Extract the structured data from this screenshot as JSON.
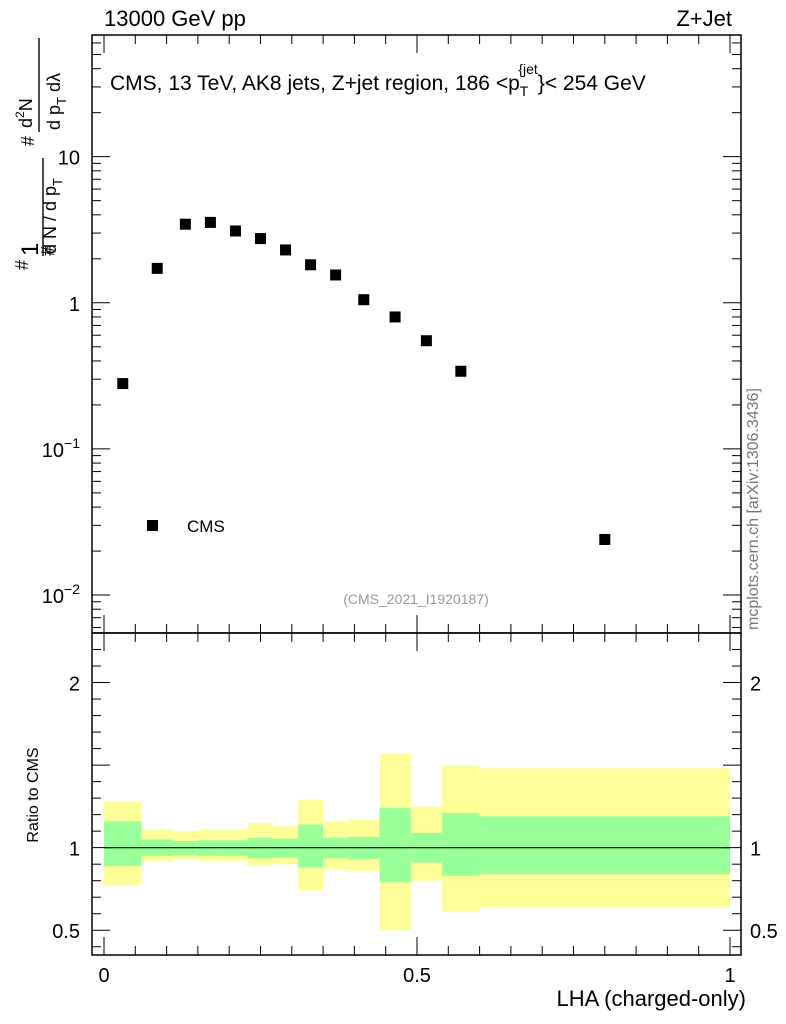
{
  "header": {
    "energy": "13000 GeV pp",
    "process": "Z+Jet",
    "side_note": "mcplots.cern.ch [arXiv:1306.3436]"
  },
  "chart_data": {
    "type": "scatter",
    "title": "CMS, 13 TeV, AK8 jets, Z+jet region, 186 <p_T^{jet}< 254 GeV",
    "ylabel": "1/(dN/dp_T) d²N/(dp_T dλ)",
    "xlabel": "LHA (charged-only)",
    "analysis_id": "(CMS_2021_I1920187)",
    "yscale": "log",
    "ylim": [
      0.005,
      70
    ],
    "xlim": [
      -0.02,
      1.02
    ],
    "yticks": [
      {
        "value": 10,
        "label": "10"
      },
      {
        "value": 1,
        "label": "1"
      },
      {
        "value": 0.1,
        "label": "10",
        "exp": "−1"
      },
      {
        "value": 0.01,
        "label": "10",
        "exp": "−2"
      }
    ],
    "legend": {
      "entry": "CMS",
      "position": "bottom-left"
    },
    "series": [
      {
        "name": "CMS",
        "x": [
          0.03,
          0.085,
          0.13,
          0.17,
          0.21,
          0.25,
          0.29,
          0.33,
          0.37,
          0.415,
          0.465,
          0.515,
          0.57,
          0.8
        ],
        "values": [
          0.28,
          1.72,
          3.45,
          3.55,
          3.1,
          2.75,
          2.3,
          1.82,
          1.55,
          1.05,
          0.8,
          0.55,
          0.34,
          0.024
        ]
      }
    ],
    "ratio_panel": {
      "ylabel": "Ratio to CMS",
      "ylim": [
        0.35,
        2.3
      ],
      "yticks": [
        {
          "value": 2,
          "label": "2"
        },
        {
          "value": 1,
          "label": "1"
        },
        {
          "value": 0.5,
          "label": "0.5"
        }
      ],
      "xticks": [
        {
          "value": 0,
          "label": "0"
        },
        {
          "value": 0.5,
          "label": "0.5"
        },
        {
          "value": 1,
          "label": "1"
        }
      ],
      "reference_line": 1,
      "bands": [
        {
          "x0": 0.0,
          "x1": 0.06,
          "inner": [
            0.89,
            1.16
          ],
          "outer": [
            0.77,
            1.28
          ]
        },
        {
          "x0": 0.06,
          "x1": 0.11,
          "inner": [
            0.95,
            1.05
          ],
          "outer": [
            0.92,
            1.11
          ]
        },
        {
          "x0": 0.11,
          "x1": 0.15,
          "inner": [
            0.955,
            1.04
          ],
          "outer": [
            0.93,
            1.1
          ]
        },
        {
          "x0": 0.15,
          "x1": 0.19,
          "inner": [
            0.95,
            1.045
          ],
          "outer": [
            0.92,
            1.11
          ]
        },
        {
          "x0": 0.19,
          "x1": 0.23,
          "inner": [
            0.95,
            1.045
          ],
          "outer": [
            0.92,
            1.11
          ]
        },
        {
          "x0": 0.23,
          "x1": 0.27,
          "inner": [
            0.935,
            1.06
          ],
          "outer": [
            0.89,
            1.15
          ]
        },
        {
          "x0": 0.27,
          "x1": 0.31,
          "inner": [
            0.94,
            1.055
          ],
          "outer": [
            0.9,
            1.13
          ]
        },
        {
          "x0": 0.31,
          "x1": 0.35,
          "inner": [
            0.88,
            1.14
          ],
          "outer": [
            0.74,
            1.29
          ]
        },
        {
          "x0": 0.35,
          "x1": 0.39,
          "inner": [
            0.935,
            1.06
          ],
          "outer": [
            0.87,
            1.16
          ]
        },
        {
          "x0": 0.39,
          "x1": 0.44,
          "inner": [
            0.93,
            1.065
          ],
          "outer": [
            0.86,
            1.17
          ]
        },
        {
          "x0": 0.44,
          "x1": 0.49,
          "inner": [
            0.79,
            1.24
          ],
          "outer": [
            0.5,
            1.57
          ]
        },
        {
          "x0": 0.49,
          "x1": 0.54,
          "inner": [
            0.91,
            1.09
          ],
          "outer": [
            0.8,
            1.25
          ]
        },
        {
          "x0": 0.54,
          "x1": 0.6,
          "inner": [
            0.83,
            1.21
          ],
          "outer": [
            0.61,
            1.5
          ]
        },
        {
          "x0": 0.6,
          "x1": 1.0,
          "inner": [
            0.84,
            1.19
          ],
          "outer": [
            0.64,
            1.48
          ]
        }
      ],
      "colors": {
        "inner": "#99ff99",
        "outer": "#ffff99"
      }
    }
  }
}
